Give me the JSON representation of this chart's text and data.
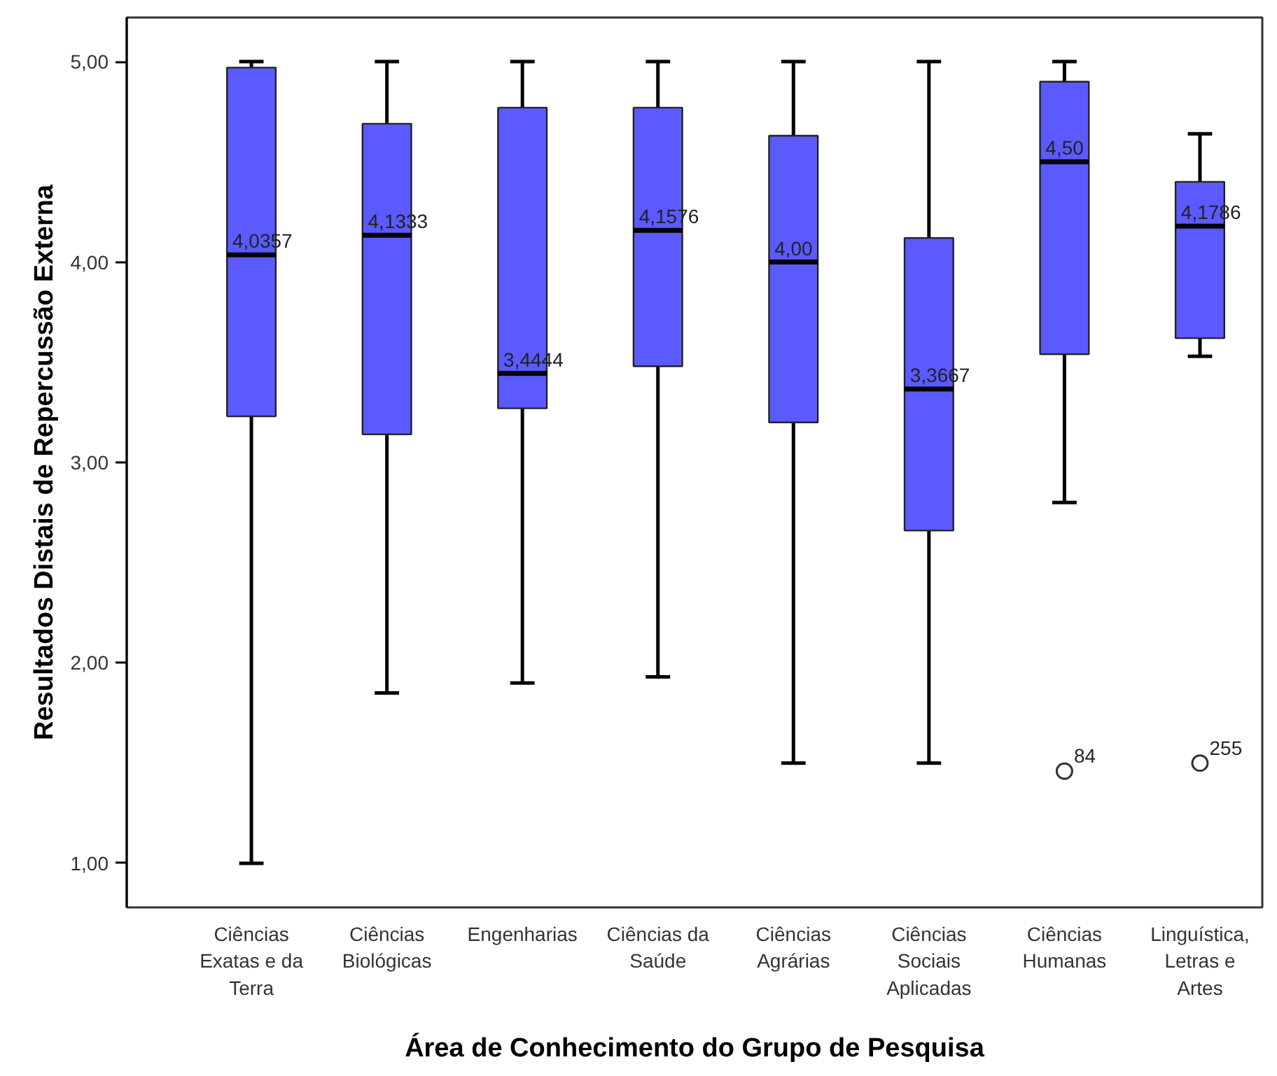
{
  "chart_data": {
    "type": "box",
    "xlabel": "Área de Conhecimento do Grupo de Pesquisa",
    "ylabel": "Resultados Distais de Repercussão Externa",
    "categories": [
      "Ciências\nExatas e da\nTerra",
      "Ciências\nBiológicas",
      "Engenharias",
      "Ciências da\nSaúde",
      "Ciências\nAgrárias",
      "Ciências\nSociais\nAplicadas",
      "Ciências\nHumanas",
      "Linguística,\nLetras e\nArtes"
    ],
    "series": [
      {
        "color": "#5a5aff",
        "boxes": [
          {
            "low": 1.0,
            "q1": 3.23,
            "median": 4.0357,
            "q3": 4.97,
            "high": 5.0
          },
          {
            "low": 1.85,
            "q1": 3.14,
            "median": 4.1333,
            "q3": 4.69,
            "high": 5.0
          },
          {
            "low": 1.9,
            "q1": 3.27,
            "median": 3.4444,
            "q3": 4.77,
            "high": 5.0
          },
          {
            "low": 1.93,
            "q1": 3.48,
            "median": 4.1576,
            "q3": 4.77,
            "high": 5.0
          },
          {
            "low": 1.5,
            "q1": 3.2,
            "median": 4.0,
            "q3": 4.63,
            "high": 5.0
          },
          {
            "low": 1.5,
            "q1": 2.66,
            "median": 3.3667,
            "q3": 4.12,
            "high": 5.0
          },
          {
            "low": 2.8,
            "q1": 3.54,
            "median": 4.5,
            "q3": 4.9,
            "high": 5.0,
            "outliers": [
              1.46
            ]
          },
          {
            "low": 3.53,
            "q1": 3.62,
            "median": 4.1786,
            "q3": 4.4,
            "high": 4.64,
            "outliers": [
              1.5
            ]
          }
        ]
      }
    ],
    "annotations": [
      {
        "text": "4,0357",
        "x": "Ciências\nExatas e da\nTerra",
        "y": 4.0357
      },
      {
        "text": "4,1333",
        "x": "Ciências\nBiológicas",
        "y": 4.1333
      },
      {
        "text": "3,4444",
        "x": "Engenharias",
        "y": 3.4444
      },
      {
        "text": "4,1576",
        "x": "Ciências da\nSaúde",
        "y": 4.1576
      },
      {
        "text": "4,00",
        "x": "Ciências\nAgrárias",
        "y": 4.0
      },
      {
        "text": "3,3667",
        "x": "Ciências\nSociais\nAplicadas",
        "y": 3.3667
      },
      {
        "text": "4,50",
        "x": "Ciências\nHumanas",
        "y": 4.5
      },
      {
        "text": "4,1786",
        "x": "Linguística,\nLetras e\nArtes",
        "y": 4.1786
      },
      "84",
      "255"
    ],
    "ylim": [
      0.78,
      5.22
    ],
    "yticks": [
      {
        "value": 1,
        "label": "1,00"
      },
      {
        "value": 2,
        "label": "2,00"
      },
      {
        "value": 3,
        "label": "3,00"
      },
      {
        "value": 4,
        "label": "4,00"
      },
      {
        "value": 5,
        "label": "5,00"
      }
    ],
    "grid": false,
    "marker": "circle"
  }
}
